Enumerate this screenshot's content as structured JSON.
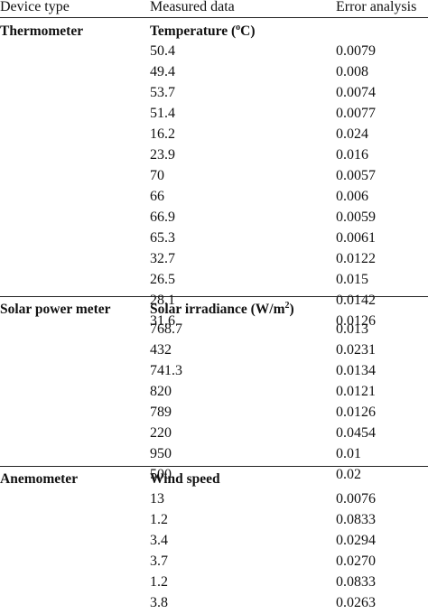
{
  "headers": {
    "device_type": "Device type",
    "measured_data": "Measured data",
    "error_analysis": "Error analysis"
  },
  "sections": [
    {
      "device": "Thermometer",
      "quantity": "Temperature (",
      "quantity_sup": "o",
      "quantity_tail": "C)",
      "rows": [
        {
          "value": "50.4",
          "error": "0.0079"
        },
        {
          "value": "49.4",
          "error": "0.008"
        },
        {
          "value": "53.7",
          "error": "0.0074"
        },
        {
          "value": "51.4",
          "error": "0.0077"
        },
        {
          "value": "16.2",
          "error": "0.024"
        },
        {
          "value": "23.9",
          "error": "0.016"
        },
        {
          "value": "70",
          "error": "0.0057"
        },
        {
          "value": "66",
          "error": "0.006"
        },
        {
          "value": "66.9",
          "error": "0.0059"
        },
        {
          "value": "65.3",
          "error": "0.0061"
        },
        {
          "value": "32.7",
          "error": "0.0122"
        },
        {
          "value": "26.5",
          "error": "0.015"
        },
        {
          "value": "28.1",
          "error": "0.0142"
        },
        {
          "value": "31.6",
          "error": "0.0126"
        }
      ]
    },
    {
      "device": "Solar power meter",
      "quantity": "Solar irradiance (W/m",
      "quantity_sup": "2",
      "quantity_tail": ")",
      "rows": [
        {
          "value": "768.7",
          "error": "0.013"
        },
        {
          "value": "432",
          "error": "0.0231"
        },
        {
          "value": "741.3",
          "error": "0.0134"
        },
        {
          "value": "820",
          "error": "0.0121"
        },
        {
          "value": "789",
          "error": "0.0126"
        },
        {
          "value": "220",
          "error": "0.0454"
        },
        {
          "value": "950",
          "error": "0.01"
        },
        {
          "value": "500",
          "error": "0.02"
        }
      ]
    },
    {
      "device": "Anemometer",
      "quantity": "Wind speed",
      "quantity_sup": "",
      "quantity_tail": "",
      "rows": [
        {
          "value": "13",
          "error": "0.0076"
        },
        {
          "value": "1.2",
          "error": "0.0833"
        },
        {
          "value": "3.4",
          "error": "0.0294"
        },
        {
          "value": "3.7",
          "error": "0.0270"
        },
        {
          "value": "1.2",
          "error": "0.0833"
        },
        {
          "value": "3.8",
          "error": "0.0263"
        }
      ]
    }
  ]
}
